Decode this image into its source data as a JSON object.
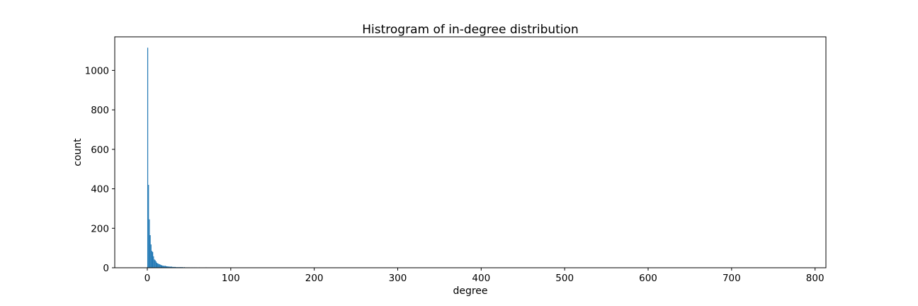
{
  "chart_data": {
    "type": "bar",
    "title": "Histrogram of in-degree distribution",
    "xlabel": "degree",
    "ylabel": "count",
    "xlim": [
      -39,
      813
    ],
    "ylim": [
      0,
      1170
    ],
    "xticks": [
      0,
      100,
      200,
      300,
      400,
      500,
      600,
      700,
      800
    ],
    "yticks": [
      0,
      200,
      400,
      600,
      800,
      1000
    ],
    "bar_color": "#1f77b4",
    "bin_width": 1,
    "x": [
      0,
      1,
      2,
      3,
      4,
      5,
      6,
      7,
      8,
      9,
      10,
      11,
      12,
      13,
      14,
      15,
      16,
      17,
      18,
      19,
      20,
      21,
      22,
      23,
      24,
      25,
      26,
      27,
      28,
      29,
      30,
      31,
      32,
      33,
      34,
      35,
      36,
      37,
      38,
      39,
      40,
      41,
      42,
      43,
      44,
      45,
      46,
      47,
      48,
      49,
      50,
      52,
      54,
      56,
      58,
      60,
      62,
      64,
      66,
      68,
      70,
      72,
      74,
      76,
      78,
      80,
      82,
      84,
      86,
      88,
      90,
      95,
      100,
      110,
      120,
      130,
      150,
      180,
      220,
      300,
      420,
      560,
      790
    ],
    "values": [
      1115,
      420,
      245,
      165,
      118,
      85,
      80,
      58,
      42,
      38,
      32,
      25,
      22,
      20,
      18,
      16,
      14,
      12,
      11,
      10,
      9,
      10,
      8,
      7,
      7,
      6,
      6,
      5,
      6,
      5,
      4,
      4,
      4,
      4,
      3,
      3,
      3,
      3,
      3,
      3,
      3,
      3,
      3,
      2,
      3,
      2,
      2,
      2,
      2,
      2,
      2,
      2,
      2,
      2,
      2,
      1,
      2,
      1,
      1,
      1,
      2,
      1,
      1,
      1,
      1,
      1,
      1,
      1,
      1,
      1,
      1,
      1,
      1,
      1,
      1,
      1,
      1,
      1,
      1,
      1,
      1,
      1,
      1
    ]
  }
}
